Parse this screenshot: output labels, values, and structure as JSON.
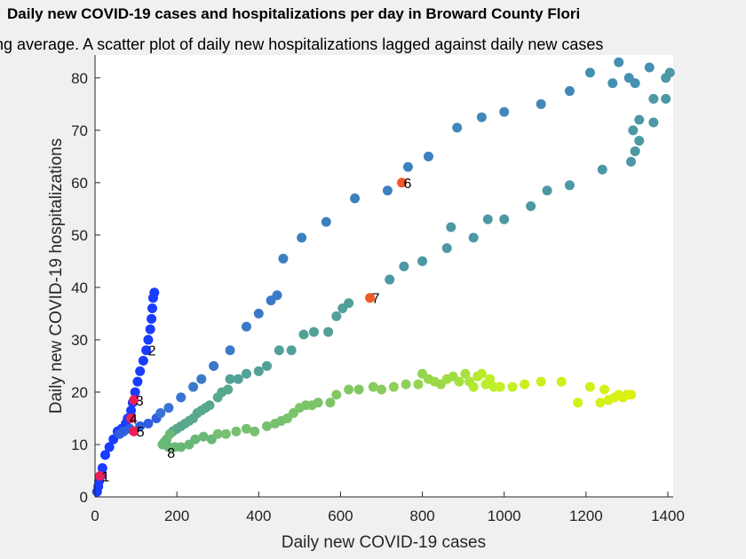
{
  "chart_data": {
    "type": "scatter",
    "title": "Daily new COVID-19 cases and hospitalizations per day in Broward County Flori",
    "subtitle": "ng average. A scatter plot of daily new hospitalizations lagged against daily new cases",
    "xlabel": "Daily new COVID-19 cases",
    "ylabel": "Daily new COVID-19 hospitalizations",
    "xlim": [
      0,
      1400
    ],
    "ylim": [
      0,
      82
    ],
    "xticks": [
      0,
      200,
      400,
      600,
      800,
      1000,
      1200,
      1400
    ],
    "yticks": [
      0,
      10,
      20,
      30,
      40,
      50,
      60,
      70,
      80
    ],
    "grid": false,
    "points": [
      {
        "x": 5,
        "y": 1,
        "color": "#1a3cff"
      },
      {
        "x": 8,
        "y": 2,
        "color": "#1a3cff"
      },
      {
        "x": 10,
        "y": 3,
        "color": "#1a3cff"
      },
      {
        "x": 14,
        "y": 4,
        "color": "#1a3cff"
      },
      {
        "x": 18,
        "y": 5.5,
        "color": "#1a3cff"
      },
      {
        "x": 25,
        "y": 8,
        "color": "#1a3cff"
      },
      {
        "x": 35,
        "y": 9.5,
        "color": "#1a3cff"
      },
      {
        "x": 45,
        "y": 11,
        "color": "#1a3cff"
      },
      {
        "x": 55,
        "y": 12.5,
        "color": "#1a3cff"
      },
      {
        "x": 65,
        "y": 13,
        "color": "#1a3cff"
      },
      {
        "x": 75,
        "y": 14,
        "color": "#1a3cff"
      },
      {
        "x": 80,
        "y": 15,
        "color": "#1a3cff"
      },
      {
        "x": 88,
        "y": 16.5,
        "color": "#1a3cff"
      },
      {
        "x": 92,
        "y": 18,
        "color": "#1a3cff"
      },
      {
        "x": 98,
        "y": 20,
        "color": "#1a3cff"
      },
      {
        "x": 104,
        "y": 22,
        "color": "#1a3cff"
      },
      {
        "x": 110,
        "y": 24,
        "color": "#1a3cff"
      },
      {
        "x": 118,
        "y": 26,
        "color": "#1a3cff"
      },
      {
        "x": 125,
        "y": 28,
        "color": "#1a3cff"
      },
      {
        "x": 130,
        "y": 30,
        "color": "#1a3cff"
      },
      {
        "x": 135,
        "y": 32,
        "color": "#1a3cff"
      },
      {
        "x": 138,
        "y": 34,
        "color": "#1a3cff"
      },
      {
        "x": 140,
        "y": 36,
        "color": "#1a3cff"
      },
      {
        "x": 142,
        "y": 38,
        "color": "#1a3cff"
      },
      {
        "x": 145,
        "y": 39,
        "color": "#1a3cff"
      },
      {
        "x": 60,
        "y": 12,
        "color": "#2f5fe0"
      },
      {
        "x": 70,
        "y": 12.5,
        "color": "#2f5fe0"
      },
      {
        "x": 85,
        "y": 13,
        "color": "#2f5fe0"
      },
      {
        "x": 110,
        "y": 13.5,
        "color": "#2f5fe0"
      },
      {
        "x": 130,
        "y": 14,
        "color": "#2f5fe0"
      },
      {
        "x": 150,
        "y": 15,
        "color": "#2f5fe0"
      },
      {
        "x": 160,
        "y": 16,
        "color": "#3a73d6"
      },
      {
        "x": 180,
        "y": 17,
        "color": "#3a73d6"
      },
      {
        "x": 210,
        "y": 19,
        "color": "#3a73d6"
      },
      {
        "x": 240,
        "y": 21,
        "color": "#3a7ac8"
      },
      {
        "x": 260,
        "y": 22.5,
        "color": "#3a7ac8"
      },
      {
        "x": 290,
        "y": 25,
        "color": "#3a7ac8"
      },
      {
        "x": 330,
        "y": 28,
        "color": "#3a7ac8"
      },
      {
        "x": 370,
        "y": 32.5,
        "color": "#3a7ac8"
      },
      {
        "x": 400,
        "y": 35,
        "color": "#3a7ac8"
      },
      {
        "x": 430,
        "y": 37.5,
        "color": "#3a7ac8"
      },
      {
        "x": 445,
        "y": 38.5,
        "color": "#3a7ac8"
      },
      {
        "x": 460,
        "y": 45.5,
        "color": "#3d80c0"
      },
      {
        "x": 505,
        "y": 49.5,
        "color": "#3d80c0"
      },
      {
        "x": 565,
        "y": 52.5,
        "color": "#3d80c0"
      },
      {
        "x": 635,
        "y": 57,
        "color": "#3d80c0"
      },
      {
        "x": 715,
        "y": 58.5,
        "color": "#3d80c0"
      },
      {
        "x": 765,
        "y": 63,
        "color": "#3d80c0"
      },
      {
        "x": 815,
        "y": 65,
        "color": "#3d80c0"
      },
      {
        "x": 885,
        "y": 70.5,
        "color": "#4188b8"
      },
      {
        "x": 945,
        "y": 72.5,
        "color": "#4188b8"
      },
      {
        "x": 1000,
        "y": 73.5,
        "color": "#4188b8"
      },
      {
        "x": 1090,
        "y": 75,
        "color": "#4188b8"
      },
      {
        "x": 1160,
        "y": 77.5,
        "color": "#4188b8"
      },
      {
        "x": 1210,
        "y": 81,
        "color": "#4490b0"
      },
      {
        "x": 1265,
        "y": 79,
        "color": "#4490b0"
      },
      {
        "x": 1280,
        "y": 83,
        "color": "#4490b0"
      },
      {
        "x": 1305,
        "y": 80,
        "color": "#4490b0"
      },
      {
        "x": 1320,
        "y": 79,
        "color": "#4490b0"
      },
      {
        "x": 1355,
        "y": 82,
        "color": "#4490b0"
      },
      {
        "x": 1395,
        "y": 80,
        "color": "#4c98a4"
      },
      {
        "x": 1405,
        "y": 81,
        "color": "#4c98a4"
      },
      {
        "x": 1395,
        "y": 76,
        "color": "#4c98a4"
      },
      {
        "x": 1365,
        "y": 76,
        "color": "#4c98a4"
      },
      {
        "x": 1365,
        "y": 71.5,
        "color": "#4c98a4"
      },
      {
        "x": 1330,
        "y": 72,
        "color": "#4c98a4"
      },
      {
        "x": 1315,
        "y": 70,
        "color": "#4c98a4"
      },
      {
        "x": 1330,
        "y": 68,
        "color": "#4c98a4"
      },
      {
        "x": 1320,
        "y": 66,
        "color": "#4c98a4"
      },
      {
        "x": 1310,
        "y": 64,
        "color": "#4c98a4"
      },
      {
        "x": 1240,
        "y": 62.5,
        "color": "#4c98a4"
      },
      {
        "x": 1160,
        "y": 59.5,
        "color": "#4c98a4"
      },
      {
        "x": 1105,
        "y": 58.5,
        "color": "#4c98a4"
      },
      {
        "x": 1065,
        "y": 55.5,
        "color": "#4c98a4"
      },
      {
        "x": 1000,
        "y": 53,
        "color": "#4c98a4"
      },
      {
        "x": 960,
        "y": 53,
        "color": "#4c98a4"
      },
      {
        "x": 925,
        "y": 49.5,
        "color": "#4c98a4"
      },
      {
        "x": 870,
        "y": 51.5,
        "color": "#4c98a4"
      },
      {
        "x": 860,
        "y": 47.5,
        "color": "#4c98a4"
      },
      {
        "x": 800,
        "y": 45,
        "color": "#4c98a4"
      },
      {
        "x": 755,
        "y": 44,
        "color": "#4c98a4"
      },
      {
        "x": 720,
        "y": 41.5,
        "color": "#4c98a4"
      },
      {
        "x": 620,
        "y": 37,
        "color": "#52a098"
      },
      {
        "x": 605,
        "y": 36,
        "color": "#52a098"
      },
      {
        "x": 590,
        "y": 34.5,
        "color": "#52a098"
      },
      {
        "x": 570,
        "y": 31.5,
        "color": "#52a098"
      },
      {
        "x": 535,
        "y": 31.5,
        "color": "#52a098"
      },
      {
        "x": 510,
        "y": 31,
        "color": "#52a098"
      },
      {
        "x": 480,
        "y": 28,
        "color": "#52a098"
      },
      {
        "x": 450,
        "y": 28,
        "color": "#52a098"
      },
      {
        "x": 420,
        "y": 25,
        "color": "#52a098"
      },
      {
        "x": 400,
        "y": 24,
        "color": "#52a098"
      },
      {
        "x": 370,
        "y": 23.5,
        "color": "#52a098"
      },
      {
        "x": 350,
        "y": 22.5,
        "color": "#52a098"
      },
      {
        "x": 330,
        "y": 22.5,
        "color": "#52a098"
      },
      {
        "x": 325,
        "y": 20.5,
        "color": "#58a88c"
      },
      {
        "x": 310,
        "y": 20,
        "color": "#58a88c"
      },
      {
        "x": 300,
        "y": 19,
        "color": "#58a88c"
      },
      {
        "x": 280,
        "y": 17.5,
        "color": "#58a88c"
      },
      {
        "x": 270,
        "y": 17,
        "color": "#58a88c"
      },
      {
        "x": 260,
        "y": 16.5,
        "color": "#58a88c"
      },
      {
        "x": 250,
        "y": 16,
        "color": "#58a88c"
      },
      {
        "x": 240,
        "y": 15,
        "color": "#58a88c"
      },
      {
        "x": 230,
        "y": 14.5,
        "color": "#58a88c"
      },
      {
        "x": 220,
        "y": 14,
        "color": "#58a88c"
      },
      {
        "x": 210,
        "y": 13.5,
        "color": "#58a88c"
      },
      {
        "x": 200,
        "y": 13,
        "color": "#58a88c"
      },
      {
        "x": 190,
        "y": 12.5,
        "color": "#58a88c"
      },
      {
        "x": 183,
        "y": 12,
        "color": "#6ab878"
      },
      {
        "x": 175,
        "y": 11,
        "color": "#6ab878"
      },
      {
        "x": 170,
        "y": 10.5,
        "color": "#6ab878"
      },
      {
        "x": 165,
        "y": 10,
        "color": "#6ab878"
      },
      {
        "x": 180,
        "y": 9.5,
        "color": "#6ab878"
      },
      {
        "x": 195,
        "y": 9.5,
        "color": "#6ab878"
      },
      {
        "x": 210,
        "y": 9.5,
        "color": "#6ab878"
      },
      {
        "x": 230,
        "y": 10,
        "color": "#6ab878"
      },
      {
        "x": 245,
        "y": 11,
        "color": "#6ab878"
      },
      {
        "x": 265,
        "y": 11.5,
        "color": "#6ab878"
      },
      {
        "x": 285,
        "y": 11,
        "color": "#6ab878"
      },
      {
        "x": 300,
        "y": 12,
        "color": "#76c070"
      },
      {
        "x": 320,
        "y": 12,
        "color": "#76c070"
      },
      {
        "x": 345,
        "y": 12.5,
        "color": "#76c070"
      },
      {
        "x": 370,
        "y": 13,
        "color": "#76c070"
      },
      {
        "x": 390,
        "y": 12.5,
        "color": "#76c070"
      },
      {
        "x": 420,
        "y": 13.5,
        "color": "#76c070"
      },
      {
        "x": 440,
        "y": 14,
        "color": "#76c070"
      },
      {
        "x": 455,
        "y": 14.5,
        "color": "#76c070"
      },
      {
        "x": 470,
        "y": 15,
        "color": "#7cc468"
      },
      {
        "x": 485,
        "y": 16,
        "color": "#7cc468"
      },
      {
        "x": 500,
        "y": 17,
        "color": "#7cc468"
      },
      {
        "x": 515,
        "y": 17.5,
        "color": "#7cc468"
      },
      {
        "x": 530,
        "y": 17.5,
        "color": "#7cc468"
      },
      {
        "x": 545,
        "y": 18,
        "color": "#7cc468"
      },
      {
        "x": 575,
        "y": 18,
        "color": "#7cc468"
      },
      {
        "x": 590,
        "y": 19.5,
        "color": "#82c862"
      },
      {
        "x": 620,
        "y": 20.5,
        "color": "#82c862"
      },
      {
        "x": 645,
        "y": 20.5,
        "color": "#82c862"
      },
      {
        "x": 680,
        "y": 21,
        "color": "#88cc5c"
      },
      {
        "x": 700,
        "y": 20.5,
        "color": "#88cc5c"
      },
      {
        "x": 730,
        "y": 21,
        "color": "#8ed056"
      },
      {
        "x": 760,
        "y": 21.5,
        "color": "#8ed056"
      },
      {
        "x": 790,
        "y": 21.5,
        "color": "#94d450"
      },
      {
        "x": 800,
        "y": 23.5,
        "color": "#94d450"
      },
      {
        "x": 815,
        "y": 22.5,
        "color": "#9ad84a"
      },
      {
        "x": 830,
        "y": 22,
        "color": "#9ad84a"
      },
      {
        "x": 845,
        "y": 21.5,
        "color": "#9ad84a"
      },
      {
        "x": 860,
        "y": 22.5,
        "color": "#a0dc44"
      },
      {
        "x": 875,
        "y": 23,
        "color": "#a0dc44"
      },
      {
        "x": 890,
        "y": 22,
        "color": "#a6e03e"
      },
      {
        "x": 905,
        "y": 23.5,
        "color": "#a6e03e"
      },
      {
        "x": 915,
        "y": 22,
        "color": "#acE438"
      },
      {
        "x": 925,
        "y": 21,
        "color": "#b2e832"
      },
      {
        "x": 935,
        "y": 23,
        "color": "#b2e832"
      },
      {
        "x": 945,
        "y": 23.5,
        "color": "#b8ec2c"
      },
      {
        "x": 955,
        "y": 21.5,
        "color": "#b8ec2c"
      },
      {
        "x": 965,
        "y": 22.5,
        "color": "#beee28"
      },
      {
        "x": 975,
        "y": 21,
        "color": "#beee28"
      },
      {
        "x": 990,
        "y": 21,
        "color": "#c4f024"
      },
      {
        "x": 1020,
        "y": 21,
        "color": "#c4f024"
      },
      {
        "x": 1050,
        "y": 21.5,
        "color": "#caf020"
      },
      {
        "x": 1090,
        "y": 22,
        "color": "#caf020"
      },
      {
        "x": 1140,
        "y": 22,
        "color": "#d0f01c"
      },
      {
        "x": 1180,
        "y": 18,
        "color": "#d0f01c"
      },
      {
        "x": 1210,
        "y": 21,
        "color": "#d2f01a"
      },
      {
        "x": 1235,
        "y": 18,
        "color": "#d4f018"
      },
      {
        "x": 1245,
        "y": 20.5,
        "color": "#d4f018"
      },
      {
        "x": 1255,
        "y": 18.5,
        "color": "#d6f016"
      },
      {
        "x": 1270,
        "y": 19,
        "color": "#d8f014"
      },
      {
        "x": 1280,
        "y": 19.5,
        "color": "#d8f014"
      },
      {
        "x": 1290,
        "y": 19,
        "color": "#daf012"
      },
      {
        "x": 1300,
        "y": 19.5,
        "color": "#daf012"
      },
      {
        "x": 1310,
        "y": 19.5,
        "color": "#dcf010"
      },
      {
        "x": 12,
        "y": 4,
        "color": "#e8205a"
      },
      {
        "x": 95,
        "y": 18.5,
        "color": "#e8205a"
      },
      {
        "x": 88,
        "y": 15,
        "color": "#e8205a"
      },
      {
        "x": 95,
        "y": 12.5,
        "color": "#e8205a"
      },
      {
        "x": 750,
        "y": 60,
        "color": "#f05a28"
      },
      {
        "x": 672,
        "y": 38,
        "color": "#f05a28"
      }
    ],
    "annotations": [
      {
        "text": "1",
        "x": 12,
        "y": 4
      },
      {
        "text": "2",
        "x": 125,
        "y": 28
      },
      {
        "text": "3",
        "x": 95,
        "y": 18.5
      },
      {
        "text": "4",
        "x": 80,
        "y": 15
      },
      {
        "text": "5",
        "x": 97,
        "y": 12.5
      },
      {
        "text": "6",
        "x": 750,
        "y": 60
      },
      {
        "text": "7",
        "x": 672,
        "y": 38
      },
      {
        "text": "8",
        "x": 172,
        "y": 8.5
      }
    ]
  }
}
